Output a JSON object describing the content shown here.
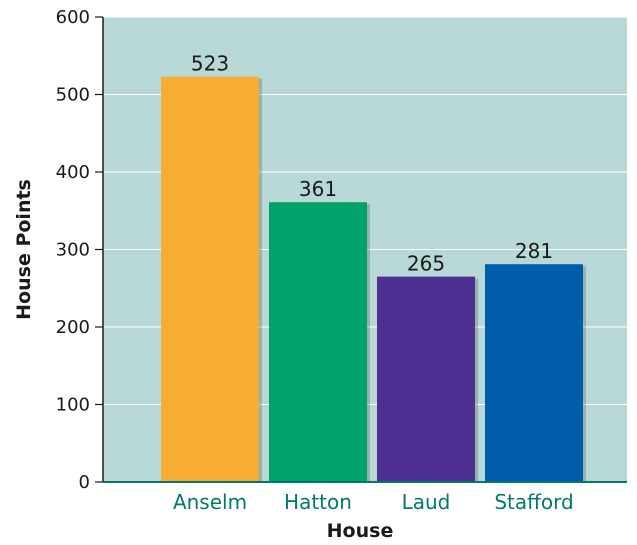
{
  "chart_data": {
    "type": "bar",
    "categories": [
      "Anselm",
      "Hatton",
      "Laud",
      "Stafford"
    ],
    "values": [
      523,
      361,
      265,
      281
    ],
    "bar_colors": [
      "#F7AC33",
      "#00A26B",
      "#4E2E91",
      "#005DAB"
    ],
    "xlabel": "House",
    "ylabel": "House Points",
    "ylim": [
      0,
      600
    ],
    "yticks": [
      0,
      100,
      200,
      300,
      400,
      500,
      600
    ],
    "plot_background": "#B7D8D6",
    "category_label_color": "#007A6C",
    "grid": true,
    "legend": "none"
  }
}
